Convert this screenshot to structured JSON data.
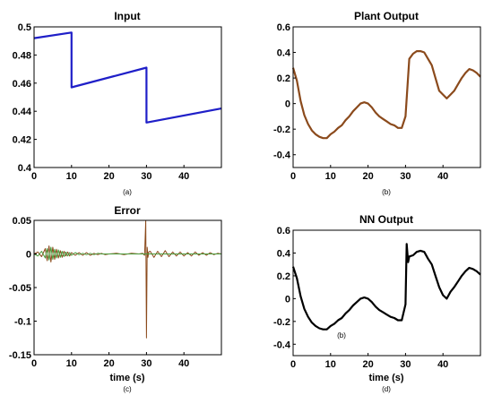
{
  "chart_data": [
    {
      "type": "line",
      "title": "Input",
      "xlabel": "",
      "sublabel": "(a)",
      "xlim": [
        0,
        50
      ],
      "ylim": [
        0.4,
        0.5
      ],
      "xticks": [
        0,
        10,
        20,
        30,
        40
      ],
      "yticks": [
        0.4,
        0.42,
        0.44,
        0.46,
        0.48,
        0.5
      ],
      "ytick_labels": [
        "0.4",
        "0.42",
        "0.44",
        "0.46",
        "0.48",
        "0.5"
      ],
      "series": [
        {
          "color": "#1f1fc8",
          "x": [
            0,
            10,
            10,
            30,
            30,
            50
          ],
          "y": [
            0.492,
            0.496,
            0.457,
            0.471,
            0.432,
            0.442
          ]
        }
      ]
    },
    {
      "type": "line",
      "title": "Plant Output",
      "xlabel": "",
      "sublabel": "(b)",
      "xlim": [
        0,
        50
      ],
      "ylim": [
        -0.5,
        0.6
      ],
      "xticks": [
        0,
        10,
        20,
        30,
        40
      ],
      "yticks": [
        -0.4,
        -0.2,
        0,
        0.2,
        0.4,
        0.6
      ],
      "ytick_labels": [
        "-0.4",
        "-0.2",
        "0",
        "0.2",
        "0.4",
        "0.6"
      ],
      "series": [
        {
          "color": "#8b4a1c",
          "x": [
            0,
            1,
            2,
            3,
            4,
            5,
            6,
            7,
            8,
            9,
            10,
            11,
            12,
            13,
            14,
            15,
            16,
            17,
            18,
            19,
            20,
            21,
            22,
            23,
            24,
            25,
            26,
            27,
            28,
            29,
            30,
            31,
            32,
            33,
            34,
            35,
            36,
            37,
            38,
            39,
            40,
            41,
            42,
            43,
            44,
            45,
            46,
            47,
            48,
            49,
            50
          ],
          "y": [
            0.28,
            0.18,
            0.02,
            -0.09,
            -0.16,
            -0.21,
            -0.24,
            -0.26,
            -0.27,
            -0.27,
            -0.24,
            -0.22,
            -0.19,
            -0.17,
            -0.13,
            -0.1,
            -0.06,
            -0.03,
            0.0,
            0.01,
            0.0,
            -0.03,
            -0.07,
            -0.1,
            -0.12,
            -0.14,
            -0.16,
            -0.17,
            -0.19,
            -0.19,
            -0.1,
            0.35,
            0.39,
            0.41,
            0.41,
            0.4,
            0.35,
            0.3,
            0.2,
            0.1,
            0.07,
            0.04,
            0.07,
            0.1,
            0.15,
            0.2,
            0.24,
            0.27,
            0.26,
            0.24,
            0.21
          ]
        }
      ]
    },
    {
      "type": "line",
      "title": "Error",
      "xlabel": "time (s)",
      "sublabel": "(c)",
      "xlim": [
        0,
        50
      ],
      "ylim": [
        -0.15,
        0.05
      ],
      "xticks": [
        0,
        10,
        20,
        30,
        40
      ],
      "yticks": [
        -0.15,
        -0.1,
        -0.05,
        0,
        0.05
      ],
      "ytick_labels": [
        "-0.15",
        "-0.1",
        "-0.05",
        "0",
        "0.05"
      ],
      "series": [
        {
          "color": "#8b4a1c",
          "x": [
            0,
            1,
            2,
            3,
            3.5,
            4,
            4.5,
            5,
            5.5,
            6,
            6.5,
            7,
            7.5,
            8,
            8.5,
            9,
            9.5,
            10,
            11,
            12,
            13,
            14,
            15,
            16,
            17,
            18,
            19,
            20,
            22,
            24,
            26,
            28,
            29,
            29.5,
            29.8,
            30.0,
            30.2,
            30.4,
            30.6,
            31,
            32,
            33,
            34,
            35,
            36,
            37,
            38,
            39,
            40,
            41,
            42,
            43,
            44,
            45,
            46,
            47,
            48,
            49,
            50
          ],
          "y": [
            0.0,
            0.003,
            -0.004,
            0.008,
            -0.01,
            0.012,
            -0.012,
            0.01,
            -0.008,
            0.007,
            -0.006,
            0.005,
            -0.005,
            0.004,
            -0.003,
            0.003,
            -0.003,
            0.002,
            -0.002,
            0.002,
            -0.002,
            0.002,
            -0.002,
            0.001,
            -0.001,
            0.001,
            -0.001,
            0.0,
            0.001,
            -0.001,
            0.001,
            0.0,
            0.001,
            -0.002,
            0.05,
            -0.125,
            0.01,
            -0.005,
            0.003,
            0.004,
            -0.005,
            0.004,
            -0.004,
            0.005,
            -0.004,
            0.003,
            -0.003,
            0.003,
            -0.003,
            0.002,
            -0.003,
            0.003,
            -0.002,
            0.002,
            -0.002,
            0.002,
            -0.001,
            0.001,
            0.0
          ]
        },
        {
          "color": "#4a9a3a",
          "x": [
            0,
            1,
            2,
            3,
            3.5,
            4,
            4.5,
            5,
            5.5,
            6,
            6.5,
            7,
            7.5,
            8,
            8.5,
            9,
            9.5,
            10,
            11,
            12,
            13,
            14,
            15,
            16,
            17,
            18,
            19,
            20,
            22,
            24,
            26,
            28,
            30,
            32,
            34,
            36,
            38,
            40,
            42,
            44,
            46,
            48,
            50
          ],
          "y": [
            0.0,
            -0.003,
            0.004,
            -0.006,
            0.008,
            -0.009,
            0.01,
            -0.008,
            0.007,
            -0.006,
            0.006,
            -0.005,
            0.004,
            -0.004,
            0.003,
            -0.003,
            0.002,
            -0.002,
            0.002,
            -0.001,
            0.001,
            -0.001,
            0.001,
            -0.001,
            0.001,
            0.0,
            0.0,
            0.0,
            0.0,
            0.0,
            0.0,
            0.0,
            0.0,
            0.0,
            0.0,
            0.0,
            0.0,
            0.0,
            0.0,
            0.0,
            0.0,
            0.0,
            0.0
          ]
        }
      ]
    },
    {
      "type": "line",
      "title": "NN Output",
      "xlabel": "time (s)",
      "sublabel": "(d)",
      "annotation": "(b)",
      "xlim": [
        0,
        50
      ],
      "ylim": [
        -0.5,
        0.6
      ],
      "xticks": [
        0,
        10,
        20,
        30,
        40
      ],
      "yticks": [
        -0.4,
        -0.2,
        0,
        0.2,
        0.4,
        0.6
      ],
      "ytick_labels": [
        "-0.4",
        "-0.2",
        "0",
        "0.2",
        "0.4",
        "0.6"
      ],
      "series": [
        {
          "color": "#000000",
          "x": [
            0,
            1,
            2,
            3,
            4,
            5,
            6,
            7,
            8,
            9,
            10,
            11,
            12,
            13,
            14,
            15,
            16,
            17,
            18,
            19,
            20,
            21,
            22,
            23,
            24,
            25,
            26,
            27,
            28,
            29,
            30,
            30.3,
            30.7,
            31,
            32,
            33,
            34,
            35,
            36,
            37,
            38,
            39,
            40,
            41,
            42,
            43,
            44,
            45,
            46,
            47,
            48,
            49,
            50
          ],
          "y": [
            0.28,
            0.18,
            0.02,
            -0.09,
            -0.16,
            -0.21,
            -0.24,
            -0.26,
            -0.27,
            -0.27,
            -0.24,
            -0.22,
            -0.19,
            -0.17,
            -0.13,
            -0.1,
            -0.06,
            -0.03,
            0.0,
            0.01,
            0.0,
            -0.03,
            -0.07,
            -0.1,
            -0.12,
            -0.14,
            -0.16,
            -0.17,
            -0.19,
            -0.19,
            -0.05,
            0.48,
            0.32,
            0.37,
            0.38,
            0.41,
            0.42,
            0.41,
            0.35,
            0.3,
            0.2,
            0.1,
            0.03,
            0.0,
            0.06,
            0.1,
            0.15,
            0.2,
            0.24,
            0.27,
            0.26,
            0.24,
            0.21
          ]
        }
      ]
    }
  ]
}
